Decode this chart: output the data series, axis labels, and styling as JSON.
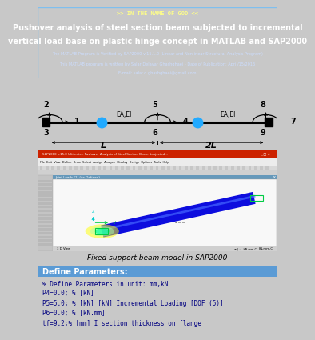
{
  "title_line1": ">> IN THE NAME OF GOD <<",
  "title_line2": "Pushover analysis of steel section beam subjected to incremental",
  "title_line3": "vertical load base on plastic hinge concept in MATLAB and SAP2000",
  "title_line4": "The MATLAB Program is Verified by SAP2000 v.15.1.0 (Linear and Nonlinear Structural Analysis Program)",
  "title_line5": "This MATLAB program is written by Salar Delavar Ghashghaei - Date of Publication: April/15/2016",
  "title_line6": "E-mail: salar.d.ghashghaei@gmail.com",
  "header_bg": "#4a8ec2",
  "beam_label": "Fixed support beam model in SAP2000",
  "section_label": "Define Parameters:",
  "section_title_bg": "#5b9bd5",
  "code_bg": "#dce6f1",
  "code_lines": [
    "% Define Parameters in unit: mm,kN",
    "P4=0.0; % [kN]",
    "P5=5.0; % [kN] [kN] Incremental Loading [DOF (5)]",
    "P6=0.0; % [kN.mm]",
    "tf=9.2;% [mm] I section thickness on flange"
  ],
  "outer_bg": "#c8c8c8",
  "sap_titlebar": "#cc2200",
  "sap_menubar": "#ececec",
  "sap_toolbar": "#d4d4d4",
  "sap_sidebar": "#c0c0c0",
  "sap_viewport_bg": "#f5f5f5",
  "sap_inner_bar": "#6699cc",
  "beam_blue": "#1010ee",
  "coord_z": "#00cccc",
  "coord_y": "#00cc00"
}
